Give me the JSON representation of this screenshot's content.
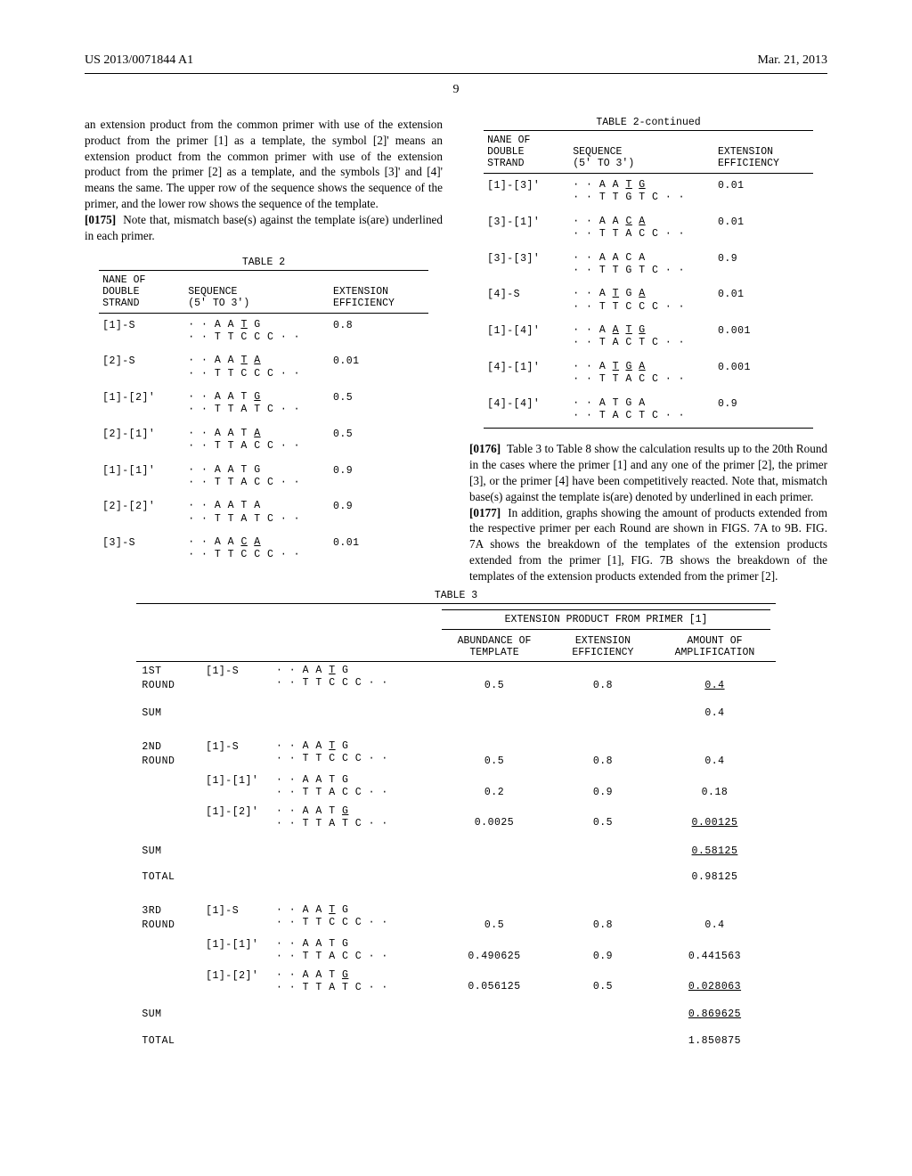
{
  "header": {
    "left": "US 2013/0071844 A1",
    "right": "Mar. 21, 2013",
    "pageNumber": "9"
  },
  "leftCol": {
    "introText": "an extension product from the common primer with use of the extension product from the primer [1] as a template, the symbol [2]' means an extension product from the common primer with use of the extension product from the primer [2] as a template, and the symbols [3]' and [4]' means the same. The upper row of the sequence shows the sequence of the primer, and the lower row shows the sequence of the template.",
    "para0175": "Note that, mismatch base(s) against the template is(are) underlined in each primer.",
    "table2": {
      "title": "TABLE 2",
      "headers": {
        "c1a": "NANE OF",
        "c1b": "DOUBLE",
        "c1c": "STRAND",
        "c2a": "SEQUENCE",
        "c2b": "(5' TO 3')",
        "c3a": "EXTENSION",
        "c3b": "EFFICIENCY"
      },
      "rows": [
        {
          "name": "[1]-S",
          "seq_top": "· · A A ",
          "seq_top_u": "T",
          "seq_top2": " G",
          "seq_bot": "· · T T C C C · ·",
          "eff": "0.8"
        },
        {
          "name": "[2]-S",
          "seq_top": "· · A A ",
          "seq_top_u": "T",
          "seq_top2": " ",
          "seq_top_u2": "A",
          "seq_bot": "· · T T C C C · ·",
          "eff": "0.01"
        },
        {
          "name": "[1]-[2]'",
          "seq_top": "· · A A T ",
          "seq_top_u": "G",
          "seq_top2": "",
          "seq_bot": "· · T T A T C · ·",
          "eff": "0.5"
        },
        {
          "name": "[2]-[1]'",
          "seq_top": "· · A A T ",
          "seq_top_u": "A",
          "seq_top2": "",
          "seq_bot": "· · T T A C C · ·",
          "eff": "0.5"
        },
        {
          "name": "[1]-[1]'",
          "seq_top": "· · A A T G",
          "seq_bot": "· · T T A C C · ·",
          "eff": "0.9"
        },
        {
          "name": "[2]-[2]'",
          "seq_top": "· · A A T A",
          "seq_bot": "· · T T A T C · ·",
          "eff": "0.9"
        },
        {
          "name": "[3]-S",
          "seq_top": "· · A A ",
          "seq_top_u": "C",
          "seq_top2": " ",
          "seq_top_u2": "A",
          "seq_bot": "· · T T C C C · ·",
          "eff": "0.01"
        }
      ]
    }
  },
  "rightCol": {
    "table2cont": {
      "title": "TABLE 2-continued",
      "headers": {
        "c1a": "NANE OF",
        "c1b": "DOUBLE",
        "c1c": "STRAND",
        "c2a": "SEQUENCE",
        "c2b": "(5' TO 3')",
        "c3a": "EXTENSION",
        "c3b": "EFFICIENCY"
      },
      "rows": [
        {
          "name": "[1]-[3]'",
          "seq_top": "· · A A ",
          "seq_top_u": "T",
          "seq_top2": " ",
          "seq_top_u2": "G",
          "seq_bot": "· · T T G T C · ·",
          "eff": "0.01"
        },
        {
          "name": "[3]-[1]'",
          "seq_top": "· · A A ",
          "seq_top_u": "C",
          "seq_top2": " ",
          "seq_top_u2": "A",
          "seq_bot": "· · T T A C C · ·",
          "eff": "0.01"
        },
        {
          "name": "[3]-[3]'",
          "seq_top": "· · A A C A",
          "seq_bot": "· · T T G T C · ·",
          "eff": "0.9"
        },
        {
          "name": "[4]-S",
          "seq_top": "· · A ",
          "seq_top_u": "T",
          "seq_top2": " G ",
          "seq_top_u2": "A",
          "seq_bot": "· · T T C C C · ·",
          "eff": "0.01"
        },
        {
          "name": "[1]-[4]'",
          "seq_top": "· · A ",
          "seq_top_u": "A",
          "seq_top2": " ",
          "seq_top_u2": "T",
          "seq_top3": " ",
          "seq_top_u3": "G",
          "seq_bot": "· · T A C T C · ·",
          "eff": "0.001"
        },
        {
          "name": "[4]-[1]'",
          "seq_top": "· · A ",
          "seq_top_u": "T",
          "seq_top2": " ",
          "seq_top_u2": "G",
          "seq_top3": " ",
          "seq_top_u3": "A",
          "seq_bot": "· · T T A C C · ·",
          "eff": "0.001"
        },
        {
          "name": "[4]-[4]'",
          "seq_top": "· · A T G A",
          "seq_bot": "· · T A C T C · ·",
          "eff": "0.9"
        }
      ]
    },
    "para0176": "Table 3 to Table 8 show the calculation results up to the 20th Round in the cases where the primer [1] and any one of the primer [2], the primer [3], or the primer [4] have been competitively reacted. Note that, mismatch base(s) against the template is(are) denoted by underlined in each primer.",
    "para0177": "In addition, graphs showing the amount of products extended from the respective primer per each Round are shown in FIGS. 7A to 9B. FIG. 7A shows the breakdown of the templates of the extension products extended from the primer [1], FIG. 7B shows the breakdown of the templates of the extension products extended from the primer [2]."
  },
  "table3": {
    "title": "TABLE 3",
    "superHeader": "EXTENSION PRODUCT FROM PRIMER [1]",
    "headers": {
      "c3a": "ABUNDANCE OF",
      "c3b": "TEMPLATE",
      "c4a": "EXTENSION",
      "c4b": "EFFICIENCY",
      "c5a": "AMOUNT OF",
      "c5b": "AMPLIFICATION"
    },
    "groups": [
      {
        "round": "1ST\nROUND",
        "rows": [
          {
            "name": "[1]-S",
            "seq_top": "· · A A ",
            "seq_top_u": "T",
            "seq_top2": " G",
            "seq_bot": "· · T T C C C · ·",
            "abund": "0.5",
            "eff": "0.8",
            "amp": "0.4"
          }
        ],
        "sum": "0.4"
      },
      {
        "round": "2ND\nROUND",
        "rows": [
          {
            "name": "[1]-S",
            "seq_top": "· · A A ",
            "seq_top_u": "T",
            "seq_top2": " G",
            "seq_bot": "· · T T C C C · ·",
            "abund": "0.5",
            "eff": "0.8",
            "amp": "0.4"
          },
          {
            "name": "[1]-[1]'",
            "seq_top": "· · A A T G",
            "seq_bot": "· · T T A C C · ·",
            "abund": "0.2",
            "eff": "0.9",
            "amp": "0.18"
          },
          {
            "name": "[1]-[2]'",
            "seq_top": "· · A A T ",
            "seq_top_u": "G",
            "seq_bot": "· · T T A T C · ·",
            "abund": "0.0025",
            "eff": "0.5",
            "amp": "0.00125"
          }
        ],
        "sum": "0.58125",
        "total": "0.98125"
      },
      {
        "round": "3RD\nROUND",
        "rows": [
          {
            "name": "[1]-S",
            "seq_top": "· · A A ",
            "seq_top_u": "T",
            "seq_top2": " G",
            "seq_bot": "· · T T C C C · ·",
            "abund": "0.5",
            "eff": "0.8",
            "amp": "0.4"
          },
          {
            "name": "[1]-[1]'",
            "seq_top": "· · A A T G",
            "seq_bot": "· · T T A C C · ·",
            "abund": "0.490625",
            "eff": "0.9",
            "amp": "0.441563"
          },
          {
            "name": "[1]-[2]'",
            "seq_top": "· · A A T ",
            "seq_top_u": "G",
            "seq_bot": "· · T T A T C · ·",
            "abund": "0.056125",
            "eff": "0.5",
            "amp": "0.028063"
          }
        ],
        "sum": "0.869625",
        "total": "1.850875"
      }
    ]
  },
  "labels": {
    "p0175": "[0175]",
    "p0176": "[0176]",
    "p0177": "[0177]",
    "sum": "SUM",
    "total": "TOTAL"
  },
  "style": {
    "bodyFontSize": 13.2,
    "monoFontSize": 11.5,
    "textColor": "#000000",
    "bgColor": "#ffffff",
    "thickRule": 1.5,
    "thinRule": 0.7
  }
}
